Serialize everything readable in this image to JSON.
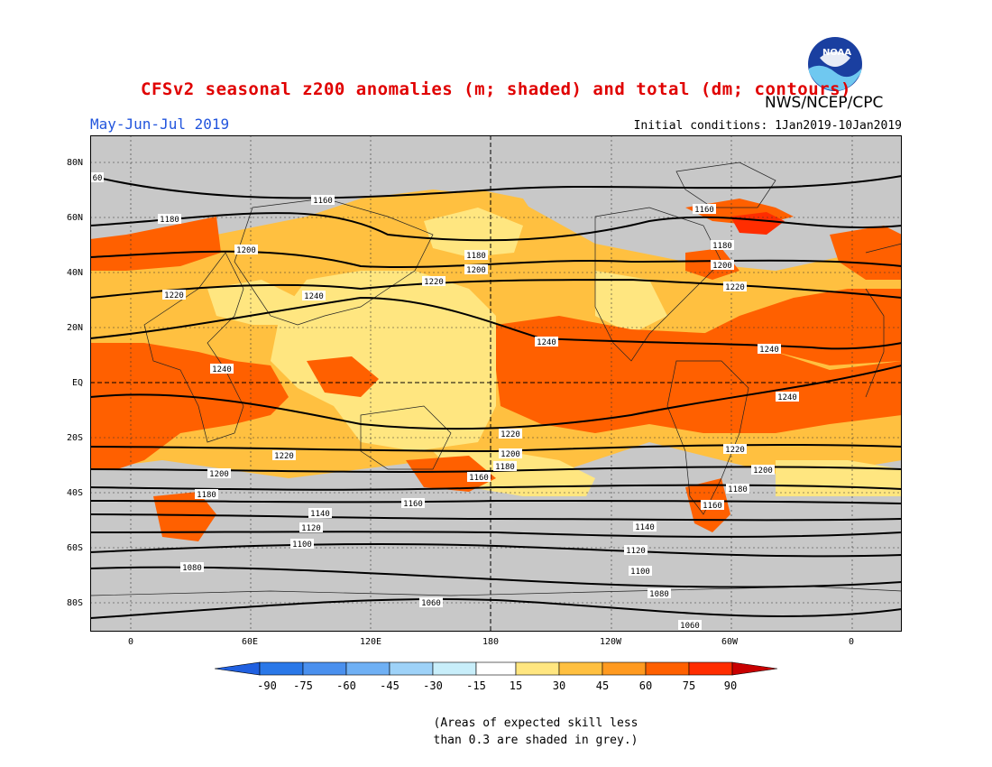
{
  "title": "CFSv2 seasonal z200 anomalies (m; shaded) and total (dm; contours)",
  "agency": "NWS/NCEP/CPC",
  "period": "May-Jun-Jul 2019",
  "initial_conditions": "Initial conditions: 1Jan2019-10Jan2019",
  "logo_text": "NOAA",
  "lat_ticks": [
    "80N",
    "60N",
    "40N",
    "20N",
    "EQ",
    "20S",
    "40S",
    "60S",
    "80S"
  ],
  "lon_ticks": [
    "0",
    "60E",
    "120E",
    "180",
    "120W",
    "60W",
    "0"
  ],
  "colorbar": {
    "labels": [
      "-90",
      "-75",
      "-60",
      "-45",
      "-30",
      "-15",
      "15",
      "30",
      "45",
      "60",
      "75",
      "90"
    ],
    "colors": [
      "#2060e0",
      "#2a78e8",
      "#4a90ee",
      "#6fb0f4",
      "#9ed2f8",
      "#c8eefa",
      "#ffffff",
      "#ffe680",
      "#ffc040",
      "#ff9a20",
      "#ff6000",
      "#ff2d00",
      "#c80000"
    ]
  },
  "note_line1": "(Areas of expected skill less",
  "note_line2": "than 0.3 are shaded in grey.)",
  "contour_labels": [
    "60",
    "1160",
    "1180",
    "1200",
    "1220",
    "1240",
    "1240",
    "1240",
    "1220",
    "1200",
    "1180",
    "1160",
    "1180",
    "1200",
    "1200",
    "1220",
    "1240",
    "1240",
    "1220",
    "1200",
    "1180",
    "1160",
    "1140",
    "1120",
    "1100",
    "1080",
    "1060",
    "1220",
    "1200",
    "1180",
    "1160",
    "1140",
    "1120",
    "1100",
    "1080",
    "1060",
    "1160",
    "1180",
    "1200",
    "1220",
    "1240",
    "1180"
  ],
  "map_colors": {
    "grey": "#c8c8c8",
    "yellow": "#ffe680",
    "lightorange": "#ffc040",
    "orange": "#ff9a20",
    "darkorange": "#ff6000",
    "red": "#ff2d00"
  }
}
